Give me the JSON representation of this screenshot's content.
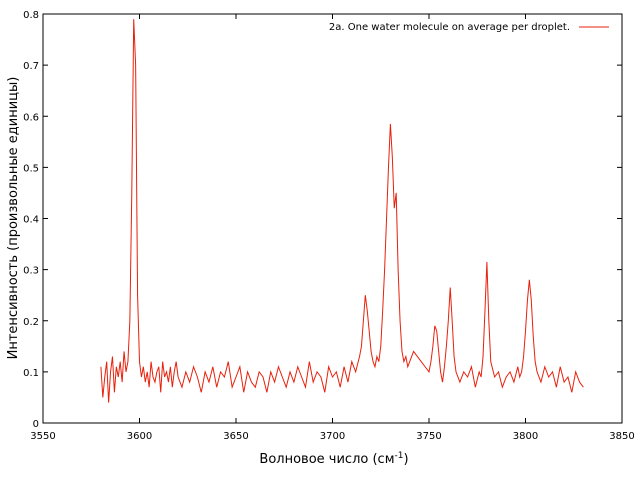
{
  "chart_data": {
    "type": "line",
    "title": "",
    "xlabel": "Волновое число (см",
    "xlabel_sup": "-1",
    "xlabel_close": ")",
    "ylabel": "Интенсивность (произвольные единицы)",
    "xlim": [
      3550,
      3850
    ],
    "ylim": [
      0,
      0.8
    ],
    "x_ticks": [
      "3550",
      "3600",
      "3650",
      "3700",
      "3750",
      "3800",
      "3850"
    ],
    "y_ticks": [
      "0",
      "0.1",
      "0.2",
      "0.3",
      "0.4",
      "0.5",
      "0.6",
      "0.7",
      "0.8"
    ],
    "grid": false,
    "legend_position": "top-right",
    "series": [
      {
        "name": "2a. One water molecule on average per droplet.",
        "color": "#e8200c",
        "x": [
          3580,
          3581,
          3582,
          3583,
          3584,
          3585,
          3586,
          3587,
          3588,
          3589,
          3590,
          3591,
          3592,
          3593,
          3594,
          3595,
          3596,
          3597,
          3598,
          3599,
          3600,
          3601,
          3602,
          3603,
          3604,
          3605,
          3606,
          3607,
          3608,
          3609,
          3610,
          3611,
          3612,
          3613,
          3614,
          3615,
          3616,
          3617,
          3618,
          3619,
          3620,
          3622,
          3624,
          3626,
          3628,
          3630,
          3632,
          3634,
          3636,
          3638,
          3640,
          3642,
          3644,
          3646,
          3648,
          3650,
          3652,
          3654,
          3656,
          3658,
          3660,
          3662,
          3664,
          3666,
          3668,
          3670,
          3672,
          3674,
          3676,
          3678,
          3680,
          3682,
          3684,
          3686,
          3688,
          3690,
          3692,
          3694,
          3696,
          3698,
          3700,
          3702,
          3704,
          3706,
          3708,
          3710,
          3712,
          3714,
          3715,
          3716,
          3717,
          3718,
          3719,
          3720,
          3721,
          3722,
          3723,
          3724,
          3725,
          3726,
          3727,
          3728,
          3729,
          3730,
          3731,
          3732,
          3733,
          3734,
          3735,
          3736,
          3737,
          3738,
          3739,
          3740,
          3742,
          3744,
          3746,
          3748,
          3750,
          3751,
          3752,
          3753,
          3754,
          3755,
          3756,
          3757,
          3758,
          3759,
          3760,
          3761,
          3762,
          3763,
          3764,
          3766,
          3768,
          3770,
          3772,
          3774,
          3776,
          3777,
          3778,
          3779,
          3780,
          3781,
          3782,
          3784,
          3786,
          3788,
          3790,
          3792,
          3794,
          3796,
          3797,
          3798,
          3799,
          3800,
          3801,
          3802,
          3803,
          3804,
          3805,
          3806,
          3808,
          3810,
          3812,
          3814,
          3816,
          3818,
          3820,
          3822,
          3824,
          3826,
          3828,
          3830
        ],
        "y": [
          0.11,
          0.05,
          0.09,
          0.12,
          0.04,
          0.1,
          0.13,
          0.06,
          0.11,
          0.09,
          0.12,
          0.08,
          0.14,
          0.1,
          0.12,
          0.2,
          0.45,
          0.79,
          0.7,
          0.25,
          0.12,
          0.09,
          0.11,
          0.08,
          0.1,
          0.07,
          0.12,
          0.09,
          0.08,
          0.1,
          0.11,
          0.06,
          0.12,
          0.09,
          0.1,
          0.08,
          0.11,
          0.07,
          0.1,
          0.12,
          0.09,
          0.07,
          0.1,
          0.08,
          0.11,
          0.09,
          0.06,
          0.1,
          0.08,
          0.11,
          0.07,
          0.1,
          0.09,
          0.12,
          0.07,
          0.09,
          0.11,
          0.06,
          0.1,
          0.08,
          0.07,
          0.1,
          0.09,
          0.06,
          0.1,
          0.08,
          0.11,
          0.09,
          0.07,
          0.1,
          0.08,
          0.11,
          0.09,
          0.07,
          0.12,
          0.08,
          0.1,
          0.09,
          0.06,
          0.11,
          0.09,
          0.1,
          0.07,
          0.11,
          0.08,
          0.12,
          0.1,
          0.13,
          0.15,
          0.2,
          0.25,
          0.22,
          0.18,
          0.14,
          0.12,
          0.11,
          0.13,
          0.12,
          0.15,
          0.22,
          0.3,
          0.4,
          0.5,
          0.585,
          0.52,
          0.42,
          0.45,
          0.3,
          0.2,
          0.14,
          0.12,
          0.13,
          0.11,
          0.12,
          0.14,
          0.13,
          0.12,
          0.11,
          0.1,
          0.12,
          0.15,
          0.19,
          0.18,
          0.14,
          0.1,
          0.08,
          0.11,
          0.15,
          0.2,
          0.265,
          0.2,
          0.13,
          0.1,
          0.08,
          0.1,
          0.09,
          0.11,
          0.07,
          0.1,
          0.09,
          0.13,
          0.22,
          0.315,
          0.2,
          0.12,
          0.09,
          0.1,
          0.07,
          0.09,
          0.1,
          0.08,
          0.11,
          0.09,
          0.1,
          0.13,
          0.18,
          0.24,
          0.28,
          0.24,
          0.17,
          0.12,
          0.1,
          0.08,
          0.11,
          0.09,
          0.1,
          0.07,
          0.11,
          0.08,
          0.09,
          0.06,
          0.1,
          0.08,
          0.07
        ]
      }
    ]
  }
}
